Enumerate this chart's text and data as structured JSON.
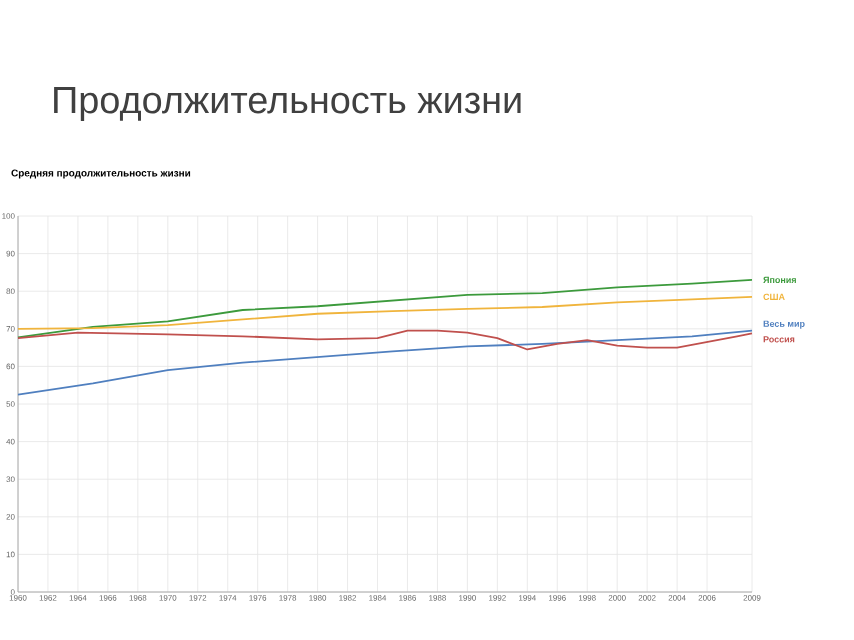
{
  "chart_data": {
    "type": "line",
    "title": "Продолжительность жизни",
    "subtitle": "Средняя продолжительность жизни",
    "grid": true,
    "xlim": [
      1960,
      2009
    ],
    "xticks": [
      1960,
      1962,
      1964,
      1966,
      1968,
      1970,
      1972,
      1974,
      1976,
      1978,
      1980,
      1982,
      1984,
      1986,
      1988,
      1990,
      1992,
      1994,
      1996,
      1998,
      2000,
      2002,
      2004,
      2006,
      2009
    ],
    "ylim": [
      0,
      100
    ],
    "yticks": [
      0,
      10,
      20,
      30,
      40,
      50,
      60,
      70,
      80,
      90,
      100
    ],
    "series": [
      {
        "name": "Япония",
        "color": "#3c9a3c",
        "x": [
          1960,
          1965,
          1970,
          1975,
          1980,
          1985,
          1990,
          1995,
          2000,
          2005,
          2009
        ],
        "values": [
          67.7,
          70.5,
          72,
          75,
          76,
          77.5,
          79,
          79.5,
          81,
          82,
          83
        ]
      },
      {
        "name": "США",
        "color": "#f0b43c",
        "x": [
          1960,
          1965,
          1970,
          1975,
          1980,
          1985,
          1990,
          1995,
          2000,
          2005,
          2009
        ],
        "values": [
          70,
          70.2,
          71,
          72.5,
          74,
          74.7,
          75.3,
          75.8,
          77,
          77.8,
          78.5
        ]
      },
      {
        "name": "Весь мир",
        "color": "#4f7fbf",
        "x": [
          1960,
          1965,
          1970,
          1975,
          1980,
          1985,
          1990,
          1995,
          2000,
          2005,
          2009
        ],
        "values": [
          52.5,
          55.5,
          59,
          61,
          62.5,
          64,
          65.3,
          66,
          67,
          68,
          69.5
        ]
      },
      {
        "name": "Россия",
        "color": "#c0504d",
        "x": [
          1960,
          1964,
          1970,
          1975,
          1980,
          1984,
          1986,
          1988,
          1990,
          1992,
          1994,
          1996,
          1998,
          2000,
          2002,
          2004,
          2006,
          2008,
          2009
        ],
        "values": [
          67.5,
          69,
          68.5,
          68,
          67.2,
          67.5,
          69.5,
          69.5,
          69,
          67.5,
          64.5,
          66,
          67,
          65.5,
          65,
          65,
          66.5,
          68,
          68.8
        ]
      }
    ]
  }
}
